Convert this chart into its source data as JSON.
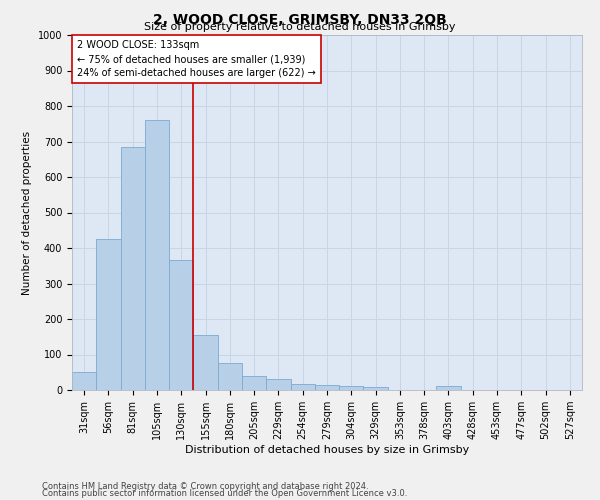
{
  "title": "2, WOOD CLOSE, GRIMSBY, DN33 2QB",
  "subtitle": "Size of property relative to detached houses in Grimsby",
  "xlabel": "Distribution of detached houses by size in Grimsby",
  "ylabel": "Number of detached properties",
  "footnote1": "Contains HM Land Registry data © Crown copyright and database right 2024.",
  "footnote2": "Contains public sector information licensed under the Open Government Licence v3.0.",
  "categories": [
    "31sqm",
    "56sqm",
    "81sqm",
    "105sqm",
    "130sqm",
    "155sqm",
    "180sqm",
    "205sqm",
    "229sqm",
    "254sqm",
    "279sqm",
    "304sqm",
    "329sqm",
    "353sqm",
    "378sqm",
    "403sqm",
    "428sqm",
    "453sqm",
    "477sqm",
    "502sqm",
    "527sqm"
  ],
  "values": [
    50,
    425,
    685,
    760,
    365,
    155,
    75,
    40,
    32,
    18,
    15,
    10,
    8,
    0,
    0,
    10,
    0,
    0,
    0,
    0,
    0
  ],
  "bar_color": "#b8cfe8",
  "bar_edge_color": "#7aaad4",
  "red_line_x": 4.5,
  "annotation_line1": "2 WOOD CLOSE: 133sqm",
  "annotation_line2": "← 75% of detached houses are smaller (1,939)",
  "annotation_line3": "24% of semi-detached houses are larger (622) →",
  "annotation_box_color": "#ffffff",
  "annotation_box_edge": "#cc0000",
  "vline_color": "#cc0000",
  "ylim": [
    0,
    1000
  ],
  "yticks": [
    0,
    100,
    200,
    300,
    400,
    500,
    600,
    700,
    800,
    900,
    1000
  ],
  "grid_color": "#c8d4e8",
  "bg_color": "#dde8f4",
  "fig_bg_color": "#f0f0f0",
  "title_fontsize": 10,
  "subtitle_fontsize": 8,
  "ylabel_fontsize": 7.5,
  "xlabel_fontsize": 8,
  "tick_fontsize": 7,
  "annot_fontsize": 7,
  "footnote_fontsize": 6
}
